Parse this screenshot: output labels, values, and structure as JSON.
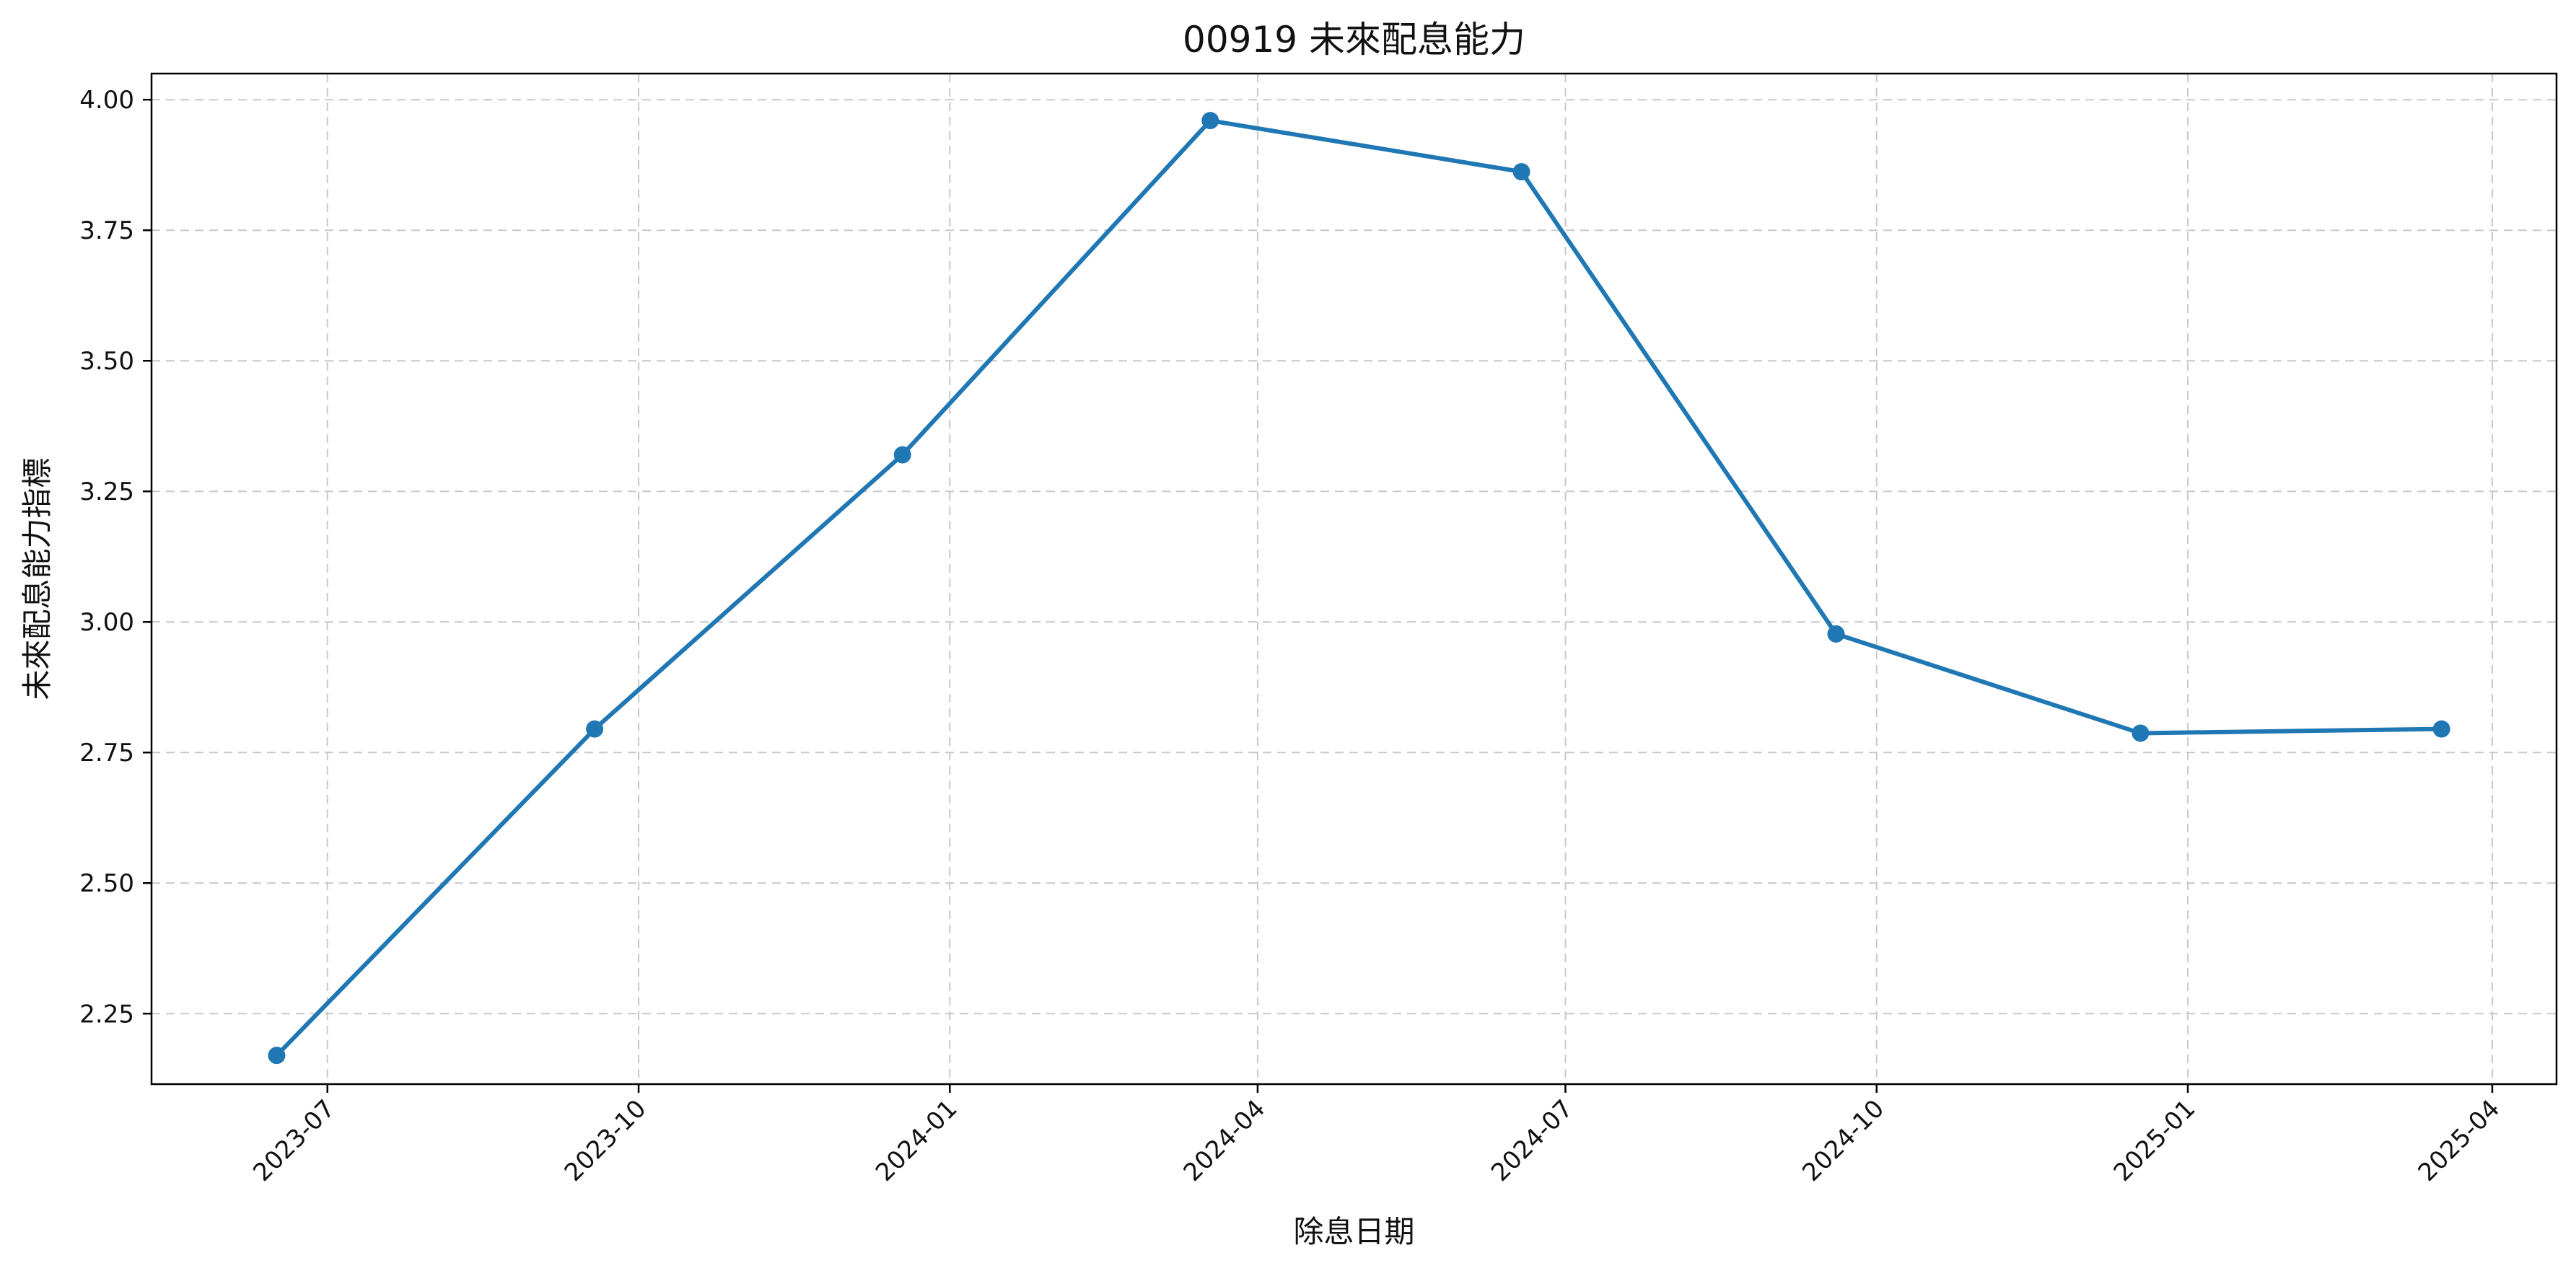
{
  "chart_data": {
    "type": "line",
    "title": "00919 未來配息能力",
    "xlabel": "除息日期",
    "ylabel": "未來配息能力指標",
    "x_axis_type": "date",
    "xlim": [
      "2023-05-10",
      "2025-04-20"
    ],
    "ylim": [
      2.115,
      4.05
    ],
    "x_ticks": [
      "2023-07",
      "2023-10",
      "2024-01",
      "2024-04",
      "2024-07",
      "2024-10",
      "2025-01",
      "2025-04"
    ],
    "y_ticks": [
      "2.25",
      "2.50",
      "2.75",
      "3.00",
      "3.25",
      "3.50",
      "3.75",
      "4.00"
    ],
    "grid": true,
    "grid_style": "dashed",
    "markers": true,
    "series": [
      {
        "color": "#1f77b4",
        "x": [
          "2023-06-16",
          "2023-09-18",
          "2023-12-18",
          "2024-03-18",
          "2024-06-18",
          "2024-09-19",
          "2024-12-18",
          "2025-03-17"
        ],
        "y": [
          2.17,
          2.795,
          3.32,
          3.96,
          3.862,
          2.977,
          2.787,
          2.795
        ]
      }
    ]
  }
}
